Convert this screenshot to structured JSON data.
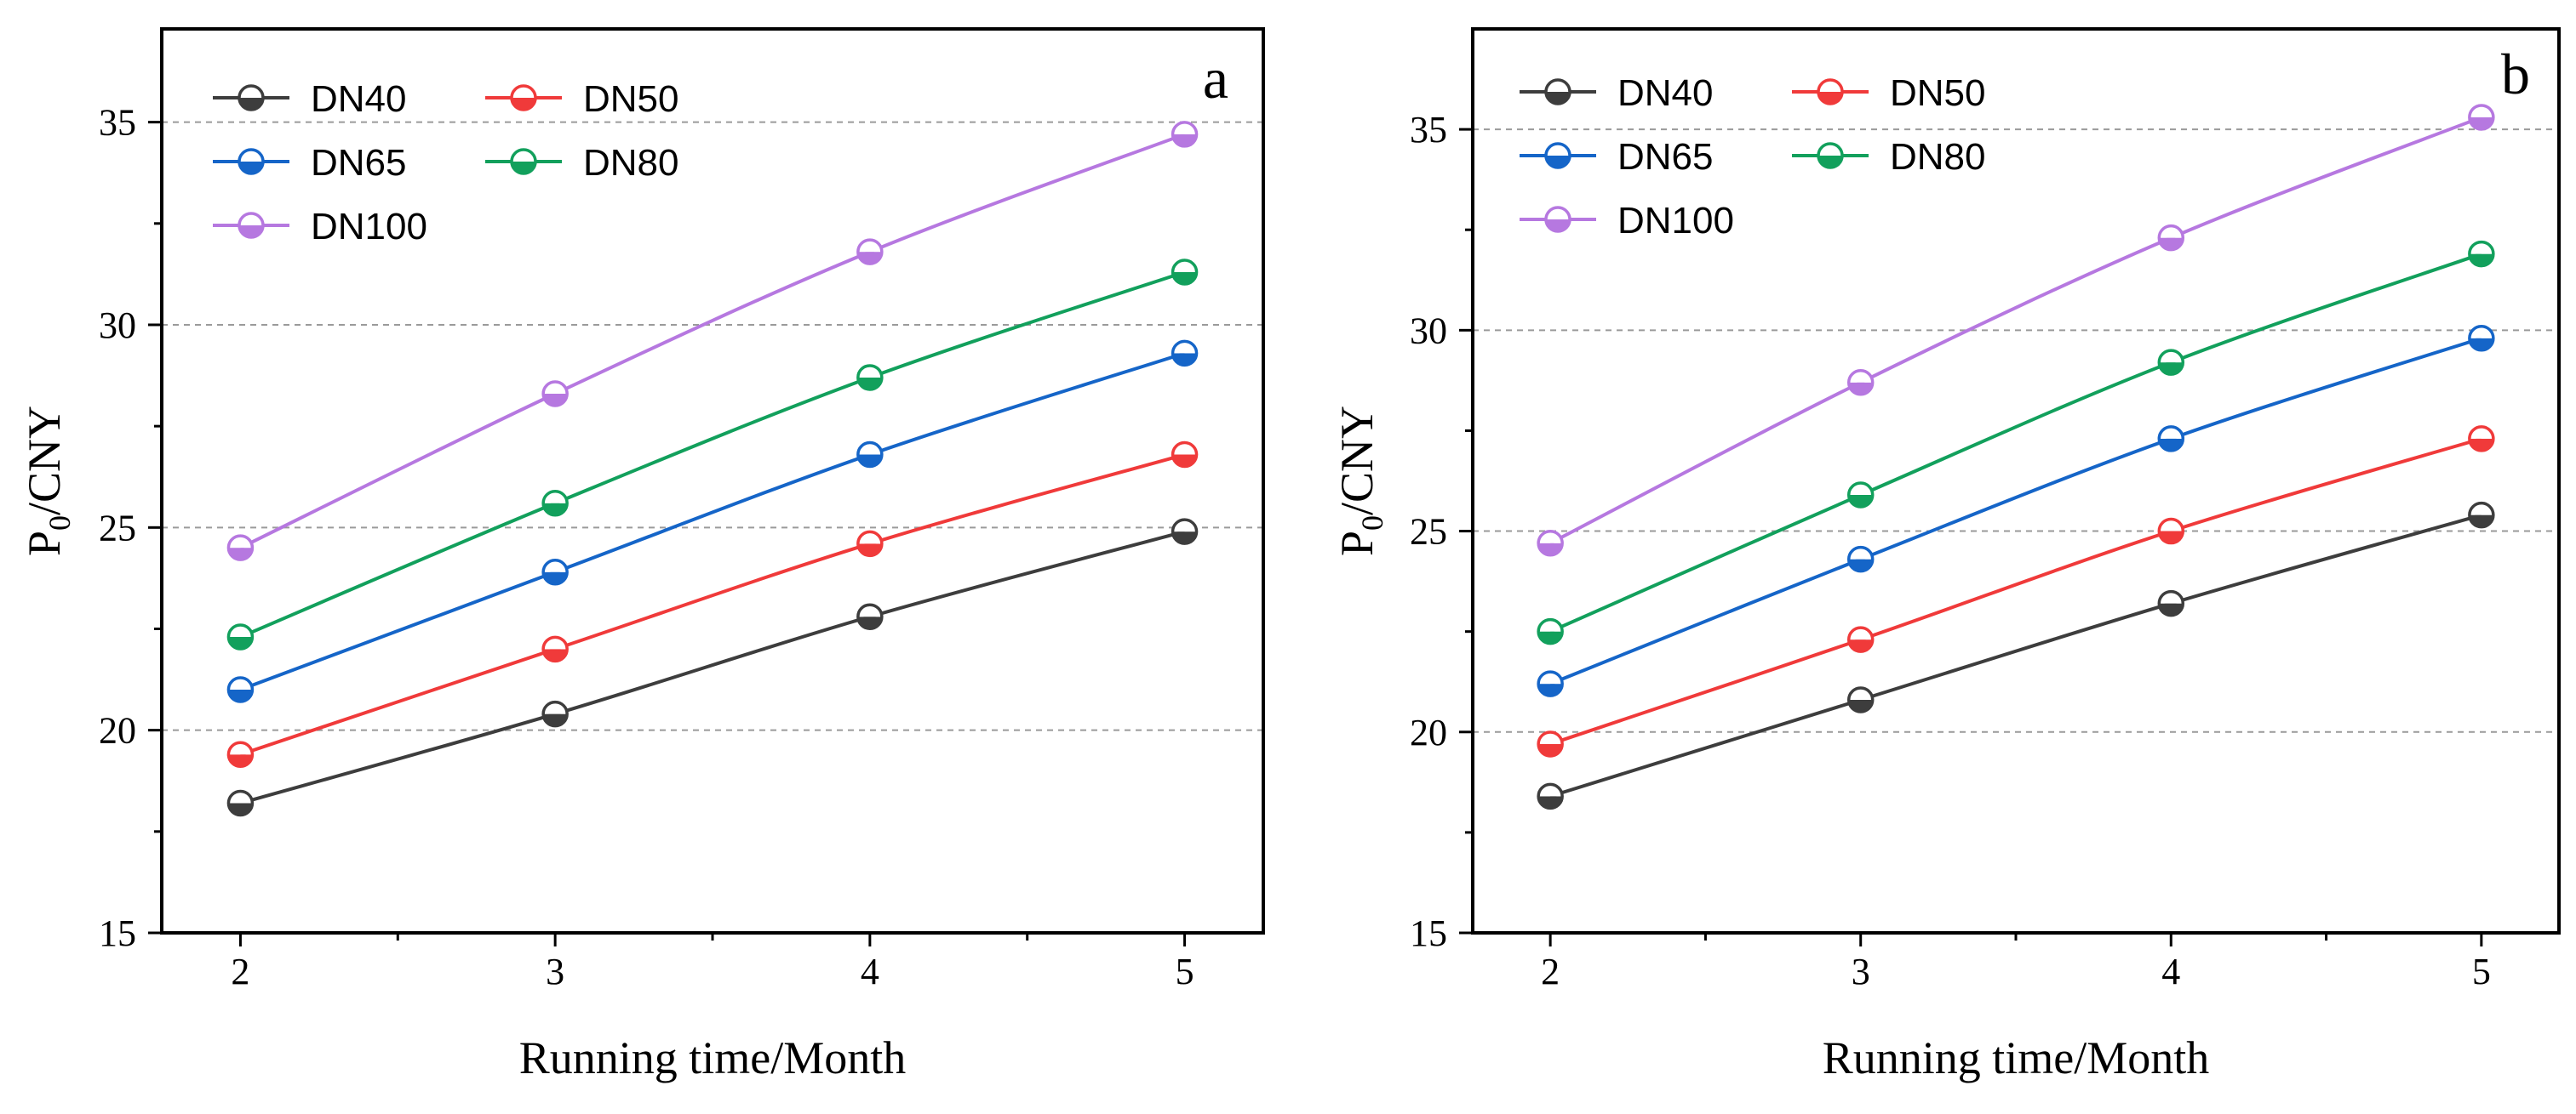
{
  "chart_data": [
    {
      "type": "line",
      "panel_label": "a",
      "x": [
        2,
        3,
        4,
        5
      ],
      "xlabel": "Running time/Month",
      "ylabel": {
        "base": "P",
        "sub": "0",
        "rest": "/CNY"
      },
      "xlim": [
        1.75,
        5.25
      ],
      "ylim": [
        15,
        37.3
      ],
      "xticks": [
        2,
        3,
        4,
        5
      ],
      "yticks": [
        15,
        20,
        25,
        30,
        35
      ],
      "grid_y": [
        20,
        25,
        30,
        35
      ],
      "legend_position": "top-left",
      "series": [
        {
          "name": "DN40",
          "color": "#3d3d3d",
          "values": [
            18.2,
            20.4,
            22.8,
            24.9
          ]
        },
        {
          "name": "DN50",
          "color": "#f03a3a",
          "values": [
            19.4,
            22.0,
            24.6,
            26.8
          ]
        },
        {
          "name": "DN65",
          "color": "#1565c8",
          "values": [
            21.0,
            23.9,
            26.8,
            29.3
          ]
        },
        {
          "name": "DN80",
          "color": "#12a05c",
          "values": [
            22.3,
            25.6,
            28.7,
            31.3
          ]
        },
        {
          "name": "DN100",
          "color": "#b678e0",
          "values": [
            24.5,
            28.3,
            31.8,
            34.7
          ]
        }
      ]
    },
    {
      "type": "line",
      "panel_label": "b",
      "x": [
        2,
        3,
        4,
        5
      ],
      "xlabel": "Running time/Month",
      "ylabel": {
        "base": "P",
        "sub": "0",
        "rest": "/CNY"
      },
      "xlim": [
        1.75,
        5.25
      ],
      "ylim": [
        15,
        37.5
      ],
      "xticks": [
        2,
        3,
        4,
        5
      ],
      "yticks": [
        15,
        20,
        25,
        30,
        35
      ],
      "grid_y": [
        20,
        25,
        30,
        35
      ],
      "legend_position": "top-left",
      "series": [
        {
          "name": "DN40",
          "color": "#3d3d3d",
          "values": [
            18.4,
            20.8,
            23.2,
            25.4
          ]
        },
        {
          "name": "DN50",
          "color": "#f03a3a",
          "values": [
            19.7,
            22.3,
            25.0,
            27.3
          ]
        },
        {
          "name": "DN65",
          "color": "#1565c8",
          "values": [
            21.2,
            24.3,
            27.3,
            29.8
          ]
        },
        {
          "name": "DN80",
          "color": "#12a05c",
          "values": [
            22.5,
            25.9,
            29.2,
            31.9
          ]
        },
        {
          "name": "DN100",
          "color": "#b678e0",
          "values": [
            24.7,
            28.7,
            32.3,
            35.3
          ]
        }
      ]
    }
  ]
}
